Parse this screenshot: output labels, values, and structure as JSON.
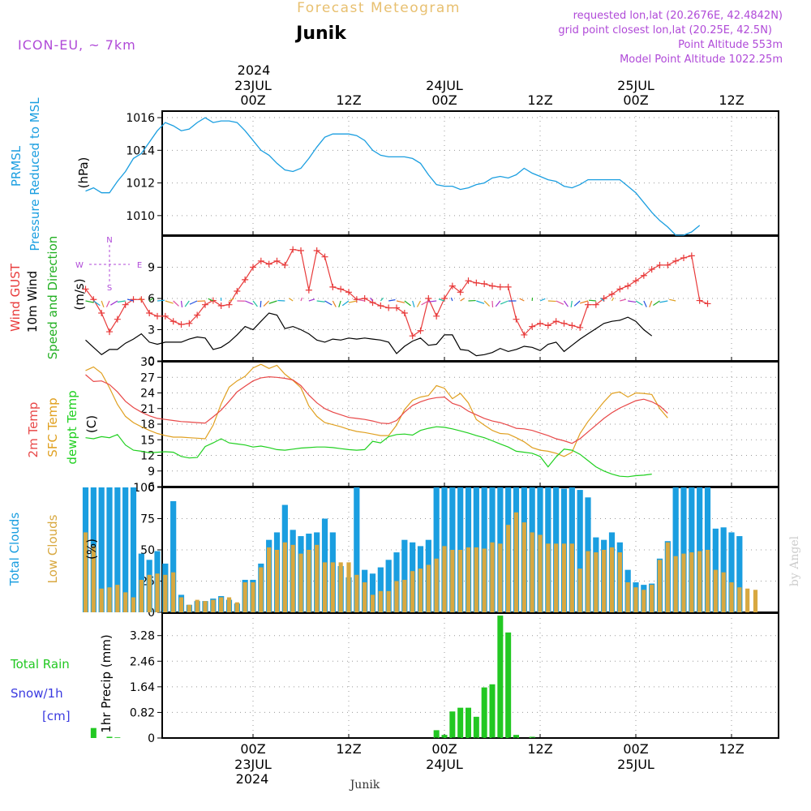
{
  "header": {
    "title": "Forecast Meteogram",
    "location": "Junik",
    "model": "ICON-EU, ~ 7km",
    "requested": "requested lon,lat (20.2676E, 42.4842N)",
    "grid_point": "grid point closest lon,lat (20.25E, 42.5N)",
    "point_altitude": "Point Altitude 553m",
    "model_altitude": "Model Point Altitude 1022.25m"
  },
  "footer": {
    "location": "Junik",
    "watermark": "by Angel"
  },
  "time_axis": {
    "top_year": "2024",
    "top_labels": [
      {
        "time": "00Z",
        "date": "23JUL"
      },
      {
        "time": "12Z",
        "date": ""
      },
      {
        "time": "00Z",
        "date": "24JUL"
      },
      {
        "time": "12Z",
        "date": ""
      },
      {
        "time": "00Z",
        "date": "25JUL"
      },
      {
        "time": "12Z",
        "date": ""
      }
    ],
    "bottom_year": "2024",
    "bottom_labels": [
      {
        "time": "00Z",
        "date": "23JUL"
      },
      {
        "time": "12Z",
        "date": ""
      },
      {
        "time": "00Z",
        "date": "24JUL"
      },
      {
        "time": "12Z",
        "date": ""
      },
      {
        "time": "00Z",
        "date": "25JUL"
      },
      {
        "time": "12Z",
        "date": ""
      }
    ]
  },
  "colors": {
    "pressure": "#1a9ee0",
    "gust": "#e83a3a",
    "wind": "#000000",
    "direction_label": "#22b022",
    "temp": "#e84848",
    "sfc_temp": "#e0a020",
    "dewpt": "#20d020",
    "total_clouds": "#1a9ee0",
    "low_clouds": "#d8a840",
    "rain": "#22c822",
    "snow": "#3a3ae0",
    "header_purple": "#b04ad8",
    "title_orange": "#e8c070"
  },
  "chart_data": [
    {
      "type": "line",
      "panel": "pressure",
      "ylabel_lines": [
        "PRMSL",
        "Pressure Reduced to MSL"
      ],
      "unit": "(hPa)",
      "x_unit": "hours from 22JUL 03Z",
      "ylim": [
        1008.8,
        1016.4
      ],
      "yticks": [
        1010,
        1012,
        1014,
        1016
      ],
      "grid": true,
      "series": [
        {
          "values": [
            1011.5,
            1011.7,
            1011.4,
            1011.4,
            1012.1,
            1012.7,
            1013.5,
            1013.8,
            1014.5,
            1015.2,
            1015.7,
            1015.5,
            1015.2,
            1015.3,
            1015.7,
            1016.0,
            1015.7,
            1015.8,
            1015.8,
            1015.7,
            1015.2,
            1014.6,
            1014.0,
            1013.7,
            1013.2,
            1012.8,
            1012.7,
            1012.9,
            1013.5,
            1014.2,
            1014.8,
            1015.0,
            1015.0,
            1015.0,
            1014.9,
            1014.6,
            1014.0,
            1013.7,
            1013.6,
            1013.6,
            1013.6,
            1013.5,
            1013.2,
            1012.5,
            1011.9,
            1011.8,
            1011.8,
            1011.6,
            1011.7,
            1011.9,
            1012.0,
            1012.3,
            1012.4,
            1012.3,
            1012.5,
            1012.9,
            1012.6,
            1012.4,
            1012.2,
            1012.1,
            1011.8,
            1011.7,
            1011.9,
            1012.2,
            1012.2,
            1012.2,
            1012.2,
            1012.2,
            1011.8,
            1011.4,
            1010.8,
            1010.2,
            1009.7,
            1009.3,
            1008.8,
            1008.8,
            1009.0,
            1009.4
          ]
        }
      ]
    },
    {
      "type": "line",
      "panel": "wind",
      "ylabel_lines": [
        "Wind GUST",
        "10m Wind",
        "Speed and Direction"
      ],
      "unit": "(m/s)",
      "compass": [
        "N",
        "E",
        "S",
        "W"
      ],
      "ylim": [
        0,
        12
      ],
      "yticks": [
        0,
        3,
        6,
        9
      ],
      "grid": true,
      "series": [
        {
          "name": "Wind GUST",
          "marker": "+",
          "values": [
            6.9,
            5.9,
            4.6,
            2.8,
            4.0,
            5.4,
            5.9,
            5.9,
            4.6,
            4.3,
            4.3,
            3.8,
            3.5,
            3.6,
            4.4,
            5.4,
            5.8,
            5.3,
            5.4,
            6.7,
            7.8,
            9.0,
            9.6,
            9.3,
            9.6,
            9.2,
            10.7,
            10.6,
            6.8,
            10.6,
            10.0,
            7.1,
            6.9,
            6.6,
            5.9,
            6.0,
            5.6,
            5.3,
            5.1,
            5.1,
            4.6,
            2.4,
            2.9,
            6.0,
            4.3,
            6.0,
            7.2,
            6.6,
            7.7,
            7.5,
            7.4,
            7.2,
            7.1,
            7.1,
            4.0,
            2.5,
            3.3,
            3.6,
            3.4,
            3.8,
            3.6,
            3.4,
            3.2,
            5.4,
            5.4,
            6.0,
            6.4,
            6.9,
            7.2,
            7.7,
            8.2,
            8.8,
            9.2,
            9.2,
            9.6,
            9.9,
            10.1,
            5.8,
            5.5
          ]
        },
        {
          "name": "10m Wind",
          "values": [
            2.0,
            1.3,
            0.6,
            1.1,
            1.1,
            1.7,
            2.1,
            2.6,
            1.8,
            1.6,
            1.8,
            1.8,
            1.8,
            2.1,
            2.3,
            2.2,
            1.1,
            1.3,
            1.8,
            2.5,
            3.3,
            3.0,
            3.8,
            4.6,
            4.4,
            3.1,
            3.3,
            3.0,
            2.6,
            2.0,
            1.8,
            2.1,
            2.0,
            2.2,
            2.1,
            2.2,
            2.1,
            2.0,
            1.8,
            0.7,
            1.4,
            1.9,
            2.2,
            1.5,
            1.6,
            2.5,
            2.5,
            1.1,
            1.0,
            0.5,
            0.6,
            0.8,
            1.2,
            0.9,
            1.1,
            1.4,
            1.3,
            1.0,
            1.6,
            1.8,
            0.9,
            1.5,
            2.1,
            2.6,
            3.1,
            3.6,
            3.8,
            3.9,
            4.2,
            3.8,
            3.0,
            2.4
          ]
        }
      ]
    },
    {
      "type": "line",
      "panel": "temperature",
      "ylabel_lines": [
        "2m Temp",
        "SFC Temp",
        "dewpt Temp"
      ],
      "unit": "(C)",
      "ylim": [
        6,
        30
      ],
      "yticks": [
        6,
        9,
        12,
        15,
        18,
        21,
        24,
        27,
        30
      ],
      "grid": true,
      "series": [
        {
          "name": "2m Temp",
          "values": [
            27.5,
            26.2,
            26.3,
            25.6,
            24.2,
            22.4,
            21.2,
            20.3,
            19.6,
            19.1,
            18.9,
            18.7,
            18.5,
            18.4,
            18.3,
            18.2,
            19.4,
            20.7,
            22.4,
            24.2,
            25.3,
            26.3,
            26.9,
            27.1,
            27.0,
            26.8,
            26.5,
            25.4,
            23.6,
            22.1,
            21.0,
            20.3,
            19.8,
            19.3,
            19.1,
            18.9,
            18.6,
            18.2,
            18.1,
            18.7,
            20.3,
            21.6,
            22.3,
            22.8,
            23.1,
            23.2,
            22.0,
            21.5,
            20.5,
            19.8,
            19.1,
            18.6,
            18.3,
            17.8,
            17.2,
            17.1,
            16.8,
            16.3,
            15.8,
            15.2,
            14.8,
            14.3,
            15.2,
            16.5,
            17.8,
            19.1,
            20.2,
            21.1,
            21.8,
            22.5,
            22.8,
            22.3,
            21.5,
            20.1
          ]
        },
        {
          "name": "SFC Temp",
          "values": [
            28.3,
            29.0,
            27.8,
            25.0,
            21.8,
            19.5,
            18.3,
            17.5,
            16.8,
            16.2,
            15.8,
            15.5,
            15.5,
            15.4,
            15.3,
            15.2,
            17.8,
            21.9,
            25.1,
            26.3,
            27.2,
            28.8,
            29.5,
            28.7,
            29.3,
            27.6,
            26.4,
            25.0,
            21.5,
            19.5,
            18.3,
            17.9,
            17.5,
            17.0,
            16.6,
            16.4,
            16.1,
            15.8,
            15.8,
            17.8,
            20.8,
            22.6,
            23.2,
            23.5,
            25.4,
            24.9,
            22.9,
            23.9,
            22.1,
            18.9,
            17.8,
            16.8,
            16.2,
            16.1,
            15.4,
            14.6,
            13.5,
            13.0,
            12.8,
            12.4,
            11.8,
            12.6,
            16.2,
            18.5,
            20.4,
            22.3,
            23.9,
            24.2,
            23.2,
            24.0,
            23.9,
            23.7,
            21.0,
            19.2
          ]
        },
        {
          "name": "dewpt Temp",
          "values": [
            15.4,
            15.2,
            15.6,
            15.4,
            16.0,
            14.0,
            13.0,
            12.8,
            12.5,
            12.6,
            12.7,
            12.6,
            11.8,
            11.5,
            11.6,
            13.7,
            14.4,
            15.2,
            14.4,
            14.2,
            14.0,
            13.6,
            13.8,
            13.5,
            13.1,
            13.0,
            13.2,
            13.4,
            13.5,
            13.6,
            13.6,
            13.5,
            13.3,
            13.1,
            13.0,
            13.1,
            14.7,
            14.4,
            15.6,
            16.0,
            16.1,
            15.9,
            16.8,
            17.2,
            17.5,
            17.4,
            17.1,
            16.7,
            16.3,
            15.8,
            15.4,
            14.8,
            14.2,
            13.6,
            12.8,
            12.6,
            12.4,
            11.8,
            9.8,
            11.7,
            13.2,
            13.0,
            12.2,
            11.0,
            9.8,
            9.0,
            8.4,
            8.0,
            7.9,
            8.1,
            8.2,
            8.4
          ]
        }
      ]
    },
    {
      "type": "bar",
      "panel": "clouds",
      "ylabel_lines": [
        "Total Clouds",
        "Low Clouds"
      ],
      "unit": "(%)",
      "ylim": [
        0,
        100
      ],
      "yticks": [
        0,
        25,
        50,
        75,
        100
      ],
      "grid": true,
      "series": [
        {
          "name": "Total Clouds",
          "values": [
            100,
            100,
            100,
            100,
            100,
            100,
            100,
            47,
            42,
            49,
            39,
            89,
            14,
            6,
            9,
            9,
            11,
            13,
            10,
            7,
            26,
            26,
            39,
            58,
            64,
            86,
            66,
            61,
            63,
            64,
            75,
            64,
            37,
            28,
            100,
            34,
            31,
            36,
            42,
            48,
            58,
            56,
            53,
            58,
            100,
            100,
            100,
            100,
            100,
            100,
            100,
            100,
            100,
            100,
            100,
            100,
            100,
            100,
            100,
            100,
            99,
            100,
            98,
            92,
            60,
            58,
            64,
            56,
            34,
            24,
            22,
            23,
            43,
            57,
            100,
            100,
            100,
            100,
            100,
            67,
            68,
            64,
            61
          ]
        },
        {
          "name": "Low Clouds",
          "values": [
            64,
            53,
            19,
            20,
            22,
            16,
            12,
            26,
            30,
            31,
            30,
            32,
            12,
            6,
            10,
            9,
            10,
            12,
            12,
            8,
            24,
            24,
            36,
            52,
            50,
            56,
            54,
            47,
            50,
            54,
            40,
            40,
            40,
            40,
            30,
            24,
            14,
            17,
            17,
            25,
            26,
            33,
            35,
            38,
            43,
            53,
            50,
            50,
            52,
            52,
            51,
            56,
            55,
            70,
            80,
            72,
            64,
            62,
            55,
            55,
            55,
            55,
            35,
            49,
            48,
            50,
            52,
            48,
            24,
            20,
            18,
            22,
            42,
            56,
            45,
            47,
            48,
            49,
            50,
            34,
            32,
            24,
            20,
            19,
            18
          ]
        }
      ]
    },
    {
      "type": "bar",
      "panel": "precipitation",
      "ylabel_lines": [
        "Total  Rain",
        "Snow/1h",
        "[cm]"
      ],
      "unit": "1hr Precip (mm)",
      "ylim": [
        0,
        4.0
      ],
      "yticks": [
        0,
        0.82,
        1.64,
        2.46,
        3.28
      ],
      "ytick_labels": [
        "0",
        "0.82",
        "1.64",
        "2.46",
        "3.28"
      ],
      "grid": true,
      "series": [
        {
          "name": "Total Rain",
          "values": [
            0,
            0.32,
            0,
            0.04,
            0.02,
            0,
            0,
            0,
            0,
            0,
            0,
            0,
            0,
            0,
            0,
            0,
            0,
            0,
            0,
            0,
            0,
            0,
            0,
            0,
            0,
            0,
            0,
            0,
            0,
            0,
            0,
            0,
            0,
            0,
            0,
            0,
            0,
            0,
            0,
            0,
            0,
            0,
            0,
            0,
            0.25,
            0.1,
            0.85,
            0.97,
            0.97,
            0.68,
            1.62,
            1.72,
            3.92,
            3.38,
            0.1,
            0,
            0.04,
            0,
            0,
            0,
            0,
            0,
            0,
            0,
            0,
            0,
            0,
            0,
            0,
            0,
            0,
            0,
            0,
            0,
            0,
            0,
            0,
            0,
            0,
            0
          ]
        }
      ]
    }
  ]
}
